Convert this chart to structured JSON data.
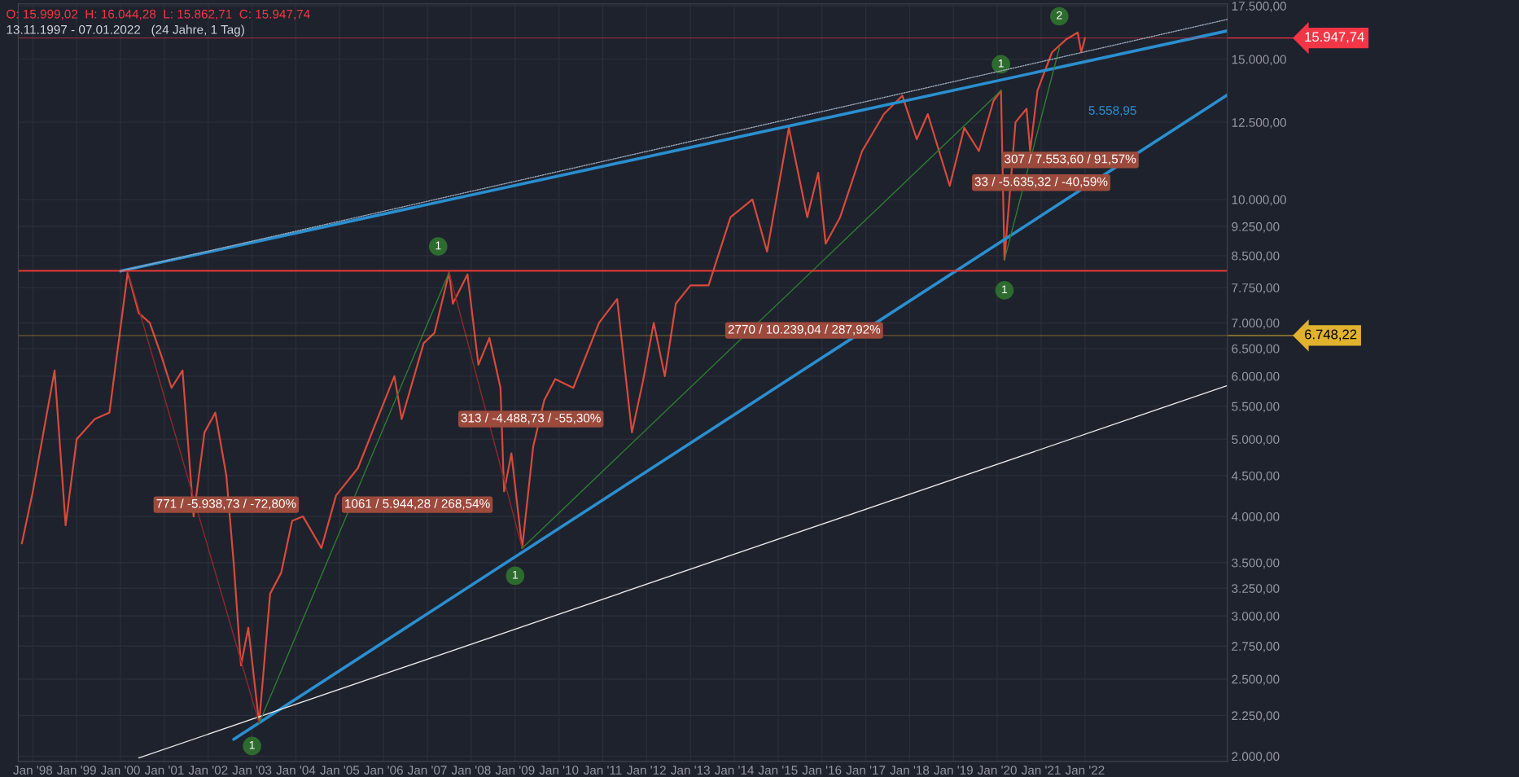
{
  "chart_data": {
    "type": "line",
    "title": "O: 15.999,02  H: 16.044,28  L: 15.862,71  C: 15.947,74",
    "subtitle": "13.11.1997 - 07.01.2022   (24 Jahre, 1 Tag)",
    "log": "y",
    "grid": true,
    "legend": false,
    "xlim": [
      "1997-09-01",
      "2025-04-01"
    ],
    "xticks": [
      {
        "value": "1998-01-01",
        "label": "Jan '98"
      },
      {
        "value": "1999-01-01",
        "label": "Jan '99"
      },
      {
        "value": "2000-01-01",
        "label": "Jan '00"
      },
      {
        "value": "2001-01-01",
        "label": "Jan '01"
      },
      {
        "value": "2002-01-01",
        "label": "Jan '02"
      },
      {
        "value": "2003-01-01",
        "label": "Jan '03"
      },
      {
        "value": "2004-01-01",
        "label": "Jan '04"
      },
      {
        "value": "2005-01-01",
        "label": "Jan '05"
      },
      {
        "value": "2006-01-01",
        "label": "Jan '06"
      },
      {
        "value": "2007-01-01",
        "label": "Jan '07"
      },
      {
        "value": "2008-01-01",
        "label": "Jan '08"
      },
      {
        "value": "2009-01-01",
        "label": "Jan '09"
      },
      {
        "value": "2010-01-01",
        "label": "Jan '10"
      },
      {
        "value": "2011-01-01",
        "label": "Jan '11"
      },
      {
        "value": "2012-01-01",
        "label": "Jan '12"
      },
      {
        "value": "2013-01-01",
        "label": "Jan '13"
      },
      {
        "value": "2014-01-01",
        "label": "Jan '14"
      },
      {
        "value": "2015-01-01",
        "label": "Jan '15"
      },
      {
        "value": "2016-01-01",
        "label": "Jan '16"
      },
      {
        "value": "2017-01-01",
        "label": "Jan '17"
      },
      {
        "value": "2018-01-01",
        "label": "Jan '18"
      },
      {
        "value": "2019-01-01",
        "label": "Jan '19"
      },
      {
        "value": "2020-01-01",
        "label": "Jan '20"
      },
      {
        "value": "2021-01-01",
        "label": "Jan '21"
      },
      {
        "value": "2022-01-01",
        "label": "Jan '22"
      }
    ],
    "ylim": [
      1970,
      17600
    ],
    "yticks": [
      {
        "value": 2000,
        "label": "2.000,00"
      },
      {
        "value": 2250,
        "label": "2.250,00"
      },
      {
        "value": 2500,
        "label": "2.500,00"
      },
      {
        "value": 2750,
        "label": "2.750,00"
      },
      {
        "value": 3000,
        "label": "3.000,00"
      },
      {
        "value": 3250,
        "label": "3.250,00"
      },
      {
        "value": 3500,
        "label": "3.500,00"
      },
      {
        "value": 4000,
        "label": "4.000,00"
      },
      {
        "value": 4500,
        "label": "4.500,00"
      },
      {
        "value": 5000,
        "label": "5.000,00"
      },
      {
        "value": 5500,
        "label": "5.500,00"
      },
      {
        "value": 6000,
        "label": "6.000,00"
      },
      {
        "value": 6500,
        "label": "6.500,00"
      },
      {
        "value": 7000,
        "label": "7.000,00"
      },
      {
        "value": 7750,
        "label": "7.750,00"
      },
      {
        "value": 8500,
        "label": "8.500,00"
      },
      {
        "value": 9250,
        "label": "9.250,00"
      },
      {
        "value": 10000,
        "label": "10.000,00"
      },
      {
        "value": 12500,
        "label": "12.500,00"
      },
      {
        "value": 15000,
        "label": "15.000,00"
      },
      {
        "value": 17500,
        "label": "17.500,00"
      }
    ],
    "series": [
      {
        "color": "#d84a3a",
        "line_style": "solid",
        "x": [
          "1997-10",
          "1998-01",
          "1998-07",
          "1998-10",
          "1999-01",
          "1999-06",
          "1999-10",
          "2000-03",
          "2000-06",
          "2000-09",
          "2000-12",
          "2001-03",
          "2001-06",
          "2001-09",
          "2001-12",
          "2002-03",
          "2002-06",
          "2002-08",
          "2002-10",
          "2002-12",
          "2003-03",
          "2003-06",
          "2003-09",
          "2003-12",
          "2004-03",
          "2004-08",
          "2004-12",
          "2005-06",
          "2005-12",
          "2006-04",
          "2006-06",
          "2006-12",
          "2007-03",
          "2007-07",
          "2007-08",
          "2007-12",
          "2008-03",
          "2008-06",
          "2008-09",
          "2008-10",
          "2008-12",
          "2009-03",
          "2009-06",
          "2009-09",
          "2009-12",
          "2010-05",
          "2010-12",
          "2011-05",
          "2011-09",
          "2011-12",
          "2012-03",
          "2012-06",
          "2012-09",
          "2013-01",
          "2013-06",
          "2013-12",
          "2014-06",
          "2014-10",
          "2015-04",
          "2015-09",
          "2015-12",
          "2016-02",
          "2016-06",
          "2016-12",
          "2017-06",
          "2017-11",
          "2018-03",
          "2018-06",
          "2018-12",
          "2019-04",
          "2019-08",
          "2019-12",
          "2020-02",
          "2020-03",
          "2020-06",
          "2020-09",
          "2020-10",
          "2020-12",
          "2021-04",
          "2021-08",
          "2021-11",
          "2021-12",
          "2022-01"
        ],
        "values": [
          3700,
          4300,
          6100,
          3900,
          5000,
          5300,
          5400,
          8100,
          7200,
          7000,
          6400,
          5800,
          6100,
          4000,
          5100,
          5400,
          4500,
          3500,
          2600,
          2900,
          2200,
          3200,
          3400,
          3950,
          4000,
          3650,
          4250,
          4600,
          5400,
          6000,
          5300,
          6600,
          6800,
          8100,
          7400,
          8050,
          6200,
          6700,
          5800,
          4300,
          4800,
          3650,
          4900,
          5600,
          5950,
          5800,
          7000,
          7500,
          5100,
          5900,
          7000,
          6000,
          7400,
          7800,
          7800,
          9500,
          10000,
          8600,
          12300,
          9500,
          10800,
          8800,
          9500,
          11500,
          12800,
          13500,
          11900,
          12800,
          10400,
          12300,
          11500,
          13300,
          13700,
          8400,
          12500,
          13000,
          11500,
          13700,
          15300,
          15900,
          16200,
          15300,
          15950
        ]
      },
      {
        "color": "#2a8fd0",
        "line_style": "solid",
        "x": [
          "2000-01",
          "2025-04"
        ],
        "values": [
          8130,
          16280
        ]
      },
      {
        "color": "#2a8fd0",
        "line_style": "solid",
        "x": [
          "2002-08",
          "2025-04"
        ],
        "values": [
          2100,
          13530
        ]
      },
      {
        "color": "#9aa7b8",
        "line_style": "dotted",
        "x": [
          "2000-01",
          "2025-04"
        ],
        "values": [
          8130,
          16830
        ]
      },
      {
        "color": "#e8e8e8",
        "line_style": "solid",
        "x": [
          "2000-06",
          "2025-04"
        ],
        "values": [
          1990,
          5840
        ]
      },
      {
        "color": "#8e2a2a",
        "line_style": "solid",
        "x": [
          "2000-03",
          "2003-03"
        ],
        "values": [
          8136,
          2200
        ]
      },
      {
        "color": "#2e7d32",
        "line_style": "solid",
        "x": [
          "2003-03",
          "2007-07"
        ],
        "values": [
          2200,
          8100
        ]
      },
      {
        "color": "#8e2a2a",
        "line_style": "solid",
        "x": [
          "2007-07",
          "2009-03"
        ],
        "values": [
          8100,
          3650
        ]
      },
      {
        "color": "#2e7d32",
        "line_style": "solid",
        "x": [
          "2009-03",
          "2020-02"
        ],
        "values": [
          3650,
          13700
        ]
      },
      {
        "color": "#2e7d32",
        "line_style": "solid",
        "x": [
          "2020-03",
          "2021-06"
        ],
        "values": [
          8400,
          15500
        ]
      }
    ],
    "ref_lines": [
      {
        "axis": "y",
        "value": 8136,
        "color": "#e53935"
      },
      {
        "axis": "y",
        "value": 6748.22,
        "label": "6.748,22",
        "color": "#e0b22e"
      },
      {
        "axis": "y",
        "value": 15947.74,
        "label": "15.947,74",
        "color": "#f23645"
      }
    ],
    "annotations": [
      "771 / -5.938,73 / -72,80%",
      "1061 / 5.944,28 / 268,54%",
      "313 / -4.488,73 / -55,30%",
      "2770 / 10.239,04 / 287,92%",
      "307 / 7.553,60 / 91,57%",
      "33 / -5.635,32 / -40,59%",
      "5.558,95",
      {
        "text": "1",
        "x": "2007-04",
        "y": 8730
      },
      {
        "text": "1",
        "x": "2003-01",
        "y": 2060
      },
      {
        "text": "1",
        "x": "2009-01",
        "y": 3370
      },
      {
        "text": "1",
        "x": "2020-02",
        "y": 14780
      },
      {
        "text": "2",
        "x": "2021-06",
        "y": 16980
      },
      {
        "text": "1",
        "x": "2020-03",
        "y": 7690
      }
    ]
  }
}
